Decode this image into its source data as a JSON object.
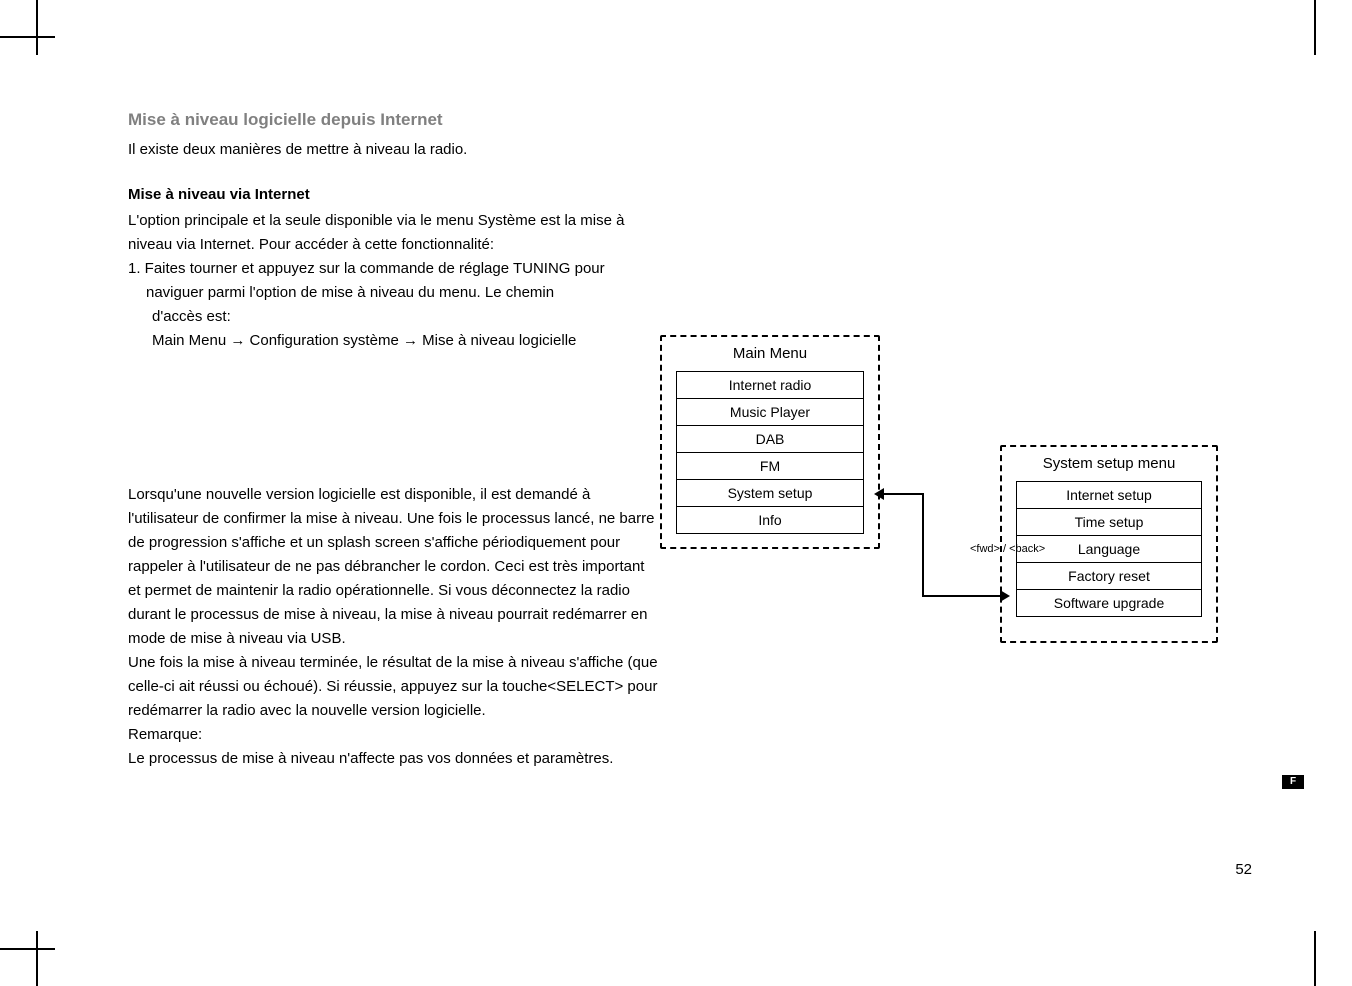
{
  "page": {
    "heading": "Mise à niveau logicielle depuis Internet",
    "intro": "Il existe deux manières de mettre à niveau la radio.",
    "sub1": "Mise à niveau via Internet",
    "p1": "L'option principale et la seule disponible via le menu Système est la mise à niveau via Internet. Pour accéder à cette fonctionnalité:",
    "step1a": "1. Faites tourner et appuyez sur la commande de réglage TUNING pour",
    "step1b": "naviguer parmi l'option de mise à niveau du menu. Le chemin",
    "step1c": "d'accès est:",
    "path_a": "Main Menu ",
    "path_b": " Configuration système ",
    "path_c": " Mise à niveau logicielle",
    "arrow": "→",
    "p2": "Lorsqu'une nouvelle version logicielle est disponible, il est demandé à l'utilisateur de confirmer la mise à niveau. Une fois le processus lancé, ne barre de progression s'affiche et un splash screen s'affiche périodiquement pour rappeler à l'utilisateur de ne pas débrancher le cordon. Ceci est très important et permet de maintenir la radio opérationnelle. Si vous déconnectez la radio durant le processus de mise à niveau, la mise à niveau pourrait redémarrer en mode de mise à niveau via USB.",
    "p3": "Une fois la mise à niveau terminée, le résultat de la mise à niveau s'affiche (que celle-ci ait réussi ou échoué). Si réussie, appuyez sur la touche<SELECT> pour redémarrer la radio avec la nouvelle version logicielle.",
    "note_label": "Remarque:",
    "note": "Le processus de mise à niveau n'affecte pas vos données et paramètres.",
    "page_number": "52",
    "lang": "F"
  },
  "diagram": {
    "left": {
      "title": "Main Menu",
      "items": [
        "Internet radio",
        "Music Player",
        "DAB",
        "FM",
        "System setup",
        "Info"
      ]
    },
    "right": {
      "title": "System setup menu",
      "items": [
        "Internet setup",
        "Time setup",
        "Language",
        "Factory reset",
        "Software upgrade"
      ]
    },
    "connector_label": "<fwd> / <back>"
  },
  "colors": {
    "heading_gray": "#808080",
    "text": "#000000",
    "bg": "#ffffff"
  }
}
